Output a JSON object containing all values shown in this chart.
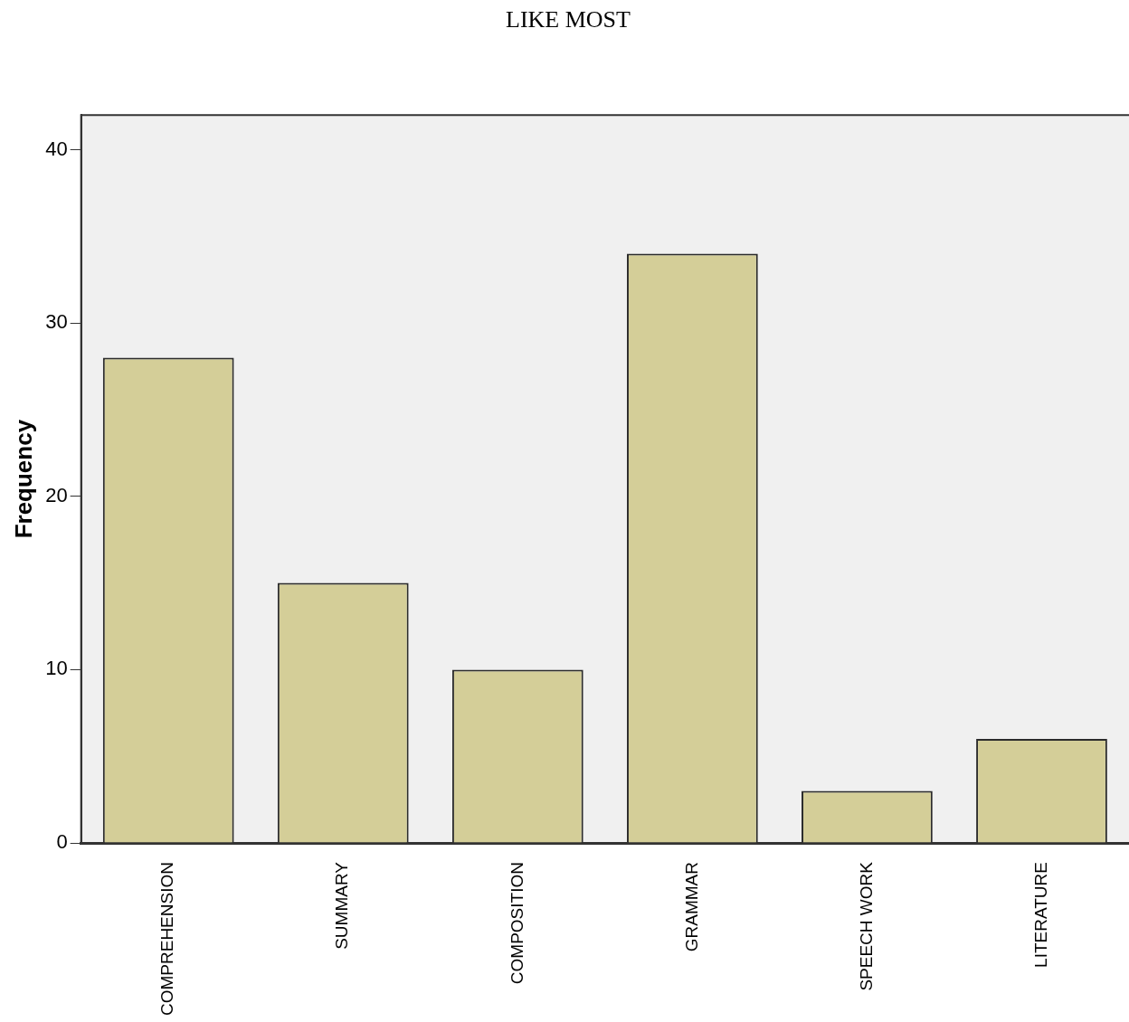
{
  "chart_data": {
    "type": "bar",
    "title": "LIKE MOST",
    "ylabel": "Frequency",
    "categories": [
      "COMPREHENSION",
      "SUMMARY",
      "COMPOSITION",
      "GRAMMAR",
      "SPEECH WORK",
      "LITERATURE"
    ],
    "values": [
      28,
      15,
      10,
      34,
      3,
      6
    ],
    "color": "#d4ce98",
    "ylim": [
      0,
      42
    ],
    "yticks": [
      0,
      10,
      20,
      30,
      40
    ],
    "grid": false,
    "legend": false
  }
}
